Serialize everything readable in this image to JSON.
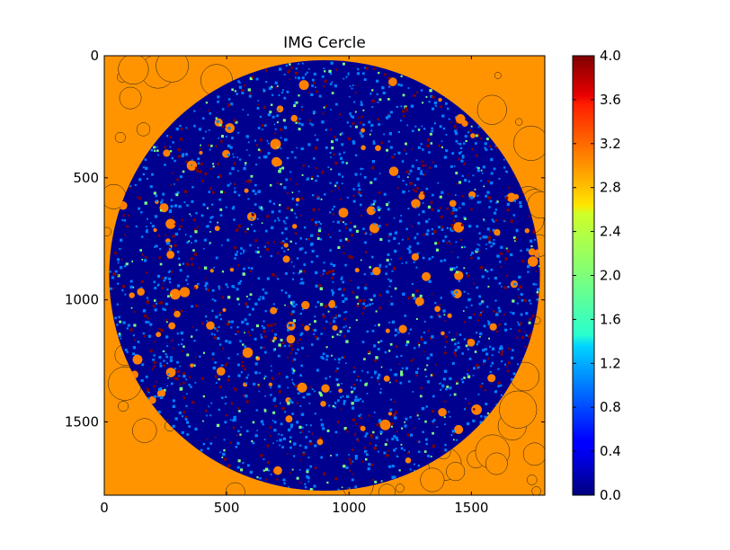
{
  "chart_data": {
    "type": "heatmap",
    "title": "IMG Cercle",
    "xlabel": "",
    "ylabel": "",
    "image_extent": {
      "x": [
        0,
        1800
      ],
      "y": [
        0,
        1800
      ]
    },
    "y_axis_inverted": true,
    "x_ticks": [
      0,
      500,
      1000,
      1500
    ],
    "x_tick_labels": [
      "0",
      "500",
      "1000",
      "1500"
    ],
    "y_ticks": [
      0,
      500,
      1000,
      1500
    ],
    "y_tick_labels": [
      "0",
      "500",
      "1000",
      "1500"
    ],
    "colorbar": {
      "colormap": "jet",
      "range": [
        0.0,
        4.0
      ],
      "ticks": [
        0.0,
        0.4,
        0.8,
        1.2,
        1.6,
        2.0,
        2.4,
        2.8,
        3.2,
        3.6,
        4.0
      ],
      "tick_labels": [
        "0.0",
        "0.4",
        "0.8",
        "1.2",
        "1.6",
        "2.0",
        "2.4",
        "2.8",
        "3.2",
        "3.6",
        "4.0"
      ]
    },
    "disk": {
      "center": [
        900,
        900
      ],
      "radius": 880
    },
    "background_value": 3.0,
    "value_mix": [
      {
        "value": 0.0,
        "fraction": 0.52
      },
      {
        "value": 1.0,
        "fraction": 0.28
      },
      {
        "value": 4.0,
        "fraction": 0.12
      },
      {
        "value": 2.0,
        "fraction": 0.06
      },
      {
        "value": 3.0,
        "fraction": 0.02
      }
    ]
  }
}
